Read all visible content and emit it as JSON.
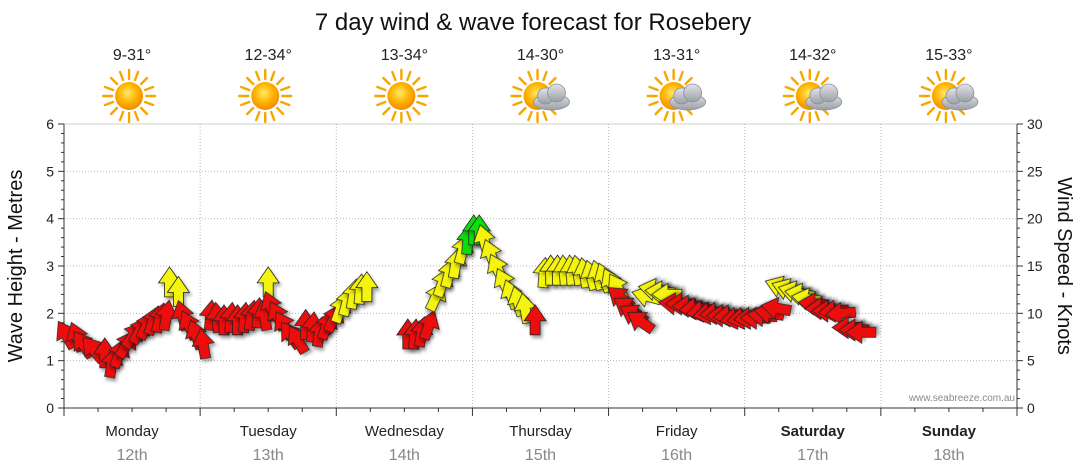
{
  "chart_data": {
    "type": "scatter",
    "title": "7 day wind & wave forecast for Rosebery",
    "ylabel_left": "Wave Height - Metres",
    "ylabel_right": "Wind Speed - Knots",
    "ylim_left": [
      0,
      6
    ],
    "ylim_right": [
      0,
      30
    ],
    "yticks_left": [
      "0",
      "1",
      "2",
      "3",
      "4",
      "5",
      "6"
    ],
    "yticks_right": [
      "0",
      "5",
      "10",
      "15",
      "20",
      "25",
      "30"
    ],
    "grid": true,
    "watermark": "www.seabreeze.com.au",
    "days": [
      {
        "name": "Monday",
        "date": "12th",
        "temp": "9-31°",
        "weather": "sunny",
        "bold": false
      },
      {
        "name": "Tuesday",
        "date": "13th",
        "temp": "12-34°",
        "weather": "sunny",
        "bold": false
      },
      {
        "name": "Wednesday",
        "date": "14th",
        "temp": "13-34°",
        "weather": "sunny",
        "bold": false
      },
      {
        "name": "Thursday",
        "date": "15th",
        "temp": "14-30°",
        "weather": "partly-cloudy",
        "bold": false
      },
      {
        "name": "Friday",
        "date": "16th",
        "temp": "13-31°",
        "weather": "partly-cloudy",
        "bold": false
      },
      {
        "name": "Saturday",
        "date": "17th",
        "temp": "14-32°",
        "weather": "partly-cloudy",
        "bold": true
      },
      {
        "name": "Sunday",
        "date": "18th",
        "temp": "15-33°",
        "weather": "partly-cloudy",
        "bold": true
      }
    ],
    "colors": {
      "red": "#ee1111",
      "yellow": "#f4f40e",
      "green": "#11dd11"
    },
    "arrows": [
      {
        "t": 0.05,
        "h": 1.5,
        "dir": -30,
        "c": "red"
      },
      {
        "t": 0.2,
        "h": 1.45,
        "dir": -20,
        "c": "red"
      },
      {
        "t": 0.3,
        "h": 1.3,
        "dir": -35,
        "c": "red"
      },
      {
        "t": 0.45,
        "h": 1.2,
        "dir": -40,
        "c": "red"
      },
      {
        "t": 0.6,
        "h": 1.1,
        "dir": 0,
        "c": "red"
      },
      {
        "t": 0.7,
        "h": 0.9,
        "dir": 10,
        "c": "red"
      },
      {
        "t": 0.8,
        "h": 1.1,
        "dir": 20,
        "c": "red"
      },
      {
        "t": 0.9,
        "h": 1.3,
        "dir": 30,
        "c": "red"
      },
      {
        "t": 1.0,
        "h": 1.5,
        "dir": 35,
        "c": "red"
      },
      {
        "t": 1.1,
        "h": 1.6,
        "dir": 30,
        "c": "red"
      },
      {
        "t": 1.2,
        "h": 1.7,
        "dir": 25,
        "c": "red"
      },
      {
        "t": 1.3,
        "h": 1.8,
        "dir": 20,
        "c": "red"
      },
      {
        "t": 1.4,
        "h": 1.85,
        "dir": 15,
        "c": "red"
      },
      {
        "t": 1.5,
        "h": 1.9,
        "dir": 10,
        "c": "red"
      },
      {
        "t": 1.55,
        "h": 2.6,
        "dir": 0,
        "c": "yellow"
      },
      {
        "t": 1.68,
        "h": 2.4,
        "dir": 0,
        "c": "yellow"
      },
      {
        "t": 1.75,
        "h": 1.9,
        "dir": -15,
        "c": "red"
      },
      {
        "t": 1.85,
        "h": 1.7,
        "dir": -25,
        "c": "red"
      },
      {
        "t": 1.95,
        "h": 1.5,
        "dir": -20,
        "c": "red"
      },
      {
        "t": 2.05,
        "h": 1.3,
        "dir": -10,
        "c": "red"
      },
      {
        "t": 2.15,
        "h": 1.9,
        "dir": 5,
        "c": "red"
      },
      {
        "t": 2.25,
        "h": 1.85,
        "dir": -5,
        "c": "red"
      },
      {
        "t": 2.35,
        "h": 1.8,
        "dir": 0,
        "c": "red"
      },
      {
        "t": 2.45,
        "h": 1.85,
        "dir": 5,
        "c": "red"
      },
      {
        "t": 2.55,
        "h": 1.8,
        "dir": 0,
        "c": "red"
      },
      {
        "t": 2.65,
        "h": 1.85,
        "dir": 5,
        "c": "red"
      },
      {
        "t": 2.75,
        "h": 1.9,
        "dir": 10,
        "c": "red"
      },
      {
        "t": 2.85,
        "h": 1.95,
        "dir": 5,
        "c": "red"
      },
      {
        "t": 2.95,
        "h": 1.9,
        "dir": -10,
        "c": "red"
      },
      {
        "t": 3.0,
        "h": 2.6,
        "dir": 0,
        "c": "yellow"
      },
      {
        "t": 3.05,
        "h": 2.1,
        "dir": -20,
        "c": "red"
      },
      {
        "t": 3.15,
        "h": 1.9,
        "dir": -25,
        "c": "red"
      },
      {
        "t": 3.25,
        "h": 1.7,
        "dir": -30,
        "c": "red"
      },
      {
        "t": 3.35,
        "h": 1.5,
        "dir": -35,
        "c": "red"
      },
      {
        "t": 3.45,
        "h": 1.4,
        "dir": -30,
        "c": "red"
      },
      {
        "t": 3.55,
        "h": 1.7,
        "dir": 0,
        "c": "red"
      },
      {
        "t": 3.65,
        "h": 1.65,
        "dir": 5,
        "c": "red"
      },
      {
        "t": 3.75,
        "h": 1.55,
        "dir": 10,
        "c": "red"
      },
      {
        "t": 3.85,
        "h": 1.7,
        "dir": 20,
        "c": "red"
      },
      {
        "t": 3.95,
        "h": 1.85,
        "dir": 25,
        "c": "red"
      },
      {
        "t": 4.05,
        "h": 2.05,
        "dir": 20,
        "c": "yellow"
      },
      {
        "t": 4.15,
        "h": 2.2,
        "dir": 15,
        "c": "yellow"
      },
      {
        "t": 4.25,
        "h": 2.35,
        "dir": 10,
        "c": "yellow"
      },
      {
        "t": 4.35,
        "h": 2.45,
        "dir": 5,
        "c": "yellow"
      },
      {
        "t": 4.45,
        "h": 2.5,
        "dir": 0,
        "c": "yellow"
      },
      {
        "t": 5.05,
        "h": 1.5,
        "dir": 0,
        "c": "red"
      },
      {
        "t": 5.15,
        "h": 1.5,
        "dir": 5,
        "c": "red"
      },
      {
        "t": 5.25,
        "h": 1.55,
        "dir": 10,
        "c": "red"
      },
      {
        "t": 5.35,
        "h": 1.7,
        "dir": 20,
        "c": "red"
      },
      {
        "t": 5.45,
        "h": 2.3,
        "dir": 25,
        "c": "yellow"
      },
      {
        "t": 5.55,
        "h": 2.6,
        "dir": 20,
        "c": "yellow"
      },
      {
        "t": 5.65,
        "h": 2.8,
        "dir": 15,
        "c": "yellow"
      },
      {
        "t": 5.75,
        "h": 3.0,
        "dir": 10,
        "c": "yellow"
      },
      {
        "t": 5.85,
        "h": 3.3,
        "dir": 15,
        "c": "yellow"
      },
      {
        "t": 5.93,
        "h": 3.5,
        "dir": 5,
        "c": "green"
      },
      {
        "t": 6.02,
        "h": 3.7,
        "dir": 0,
        "c": "green"
      },
      {
        "t": 6.1,
        "h": 3.7,
        "dir": 0,
        "c": "green"
      },
      {
        "t": 6.18,
        "h": 3.5,
        "dir": -15,
        "c": "yellow"
      },
      {
        "t": 6.28,
        "h": 3.2,
        "dir": -20,
        "c": "yellow"
      },
      {
        "t": 6.38,
        "h": 2.9,
        "dir": -25,
        "c": "yellow"
      },
      {
        "t": 6.48,
        "h": 2.6,
        "dir": -25,
        "c": "yellow"
      },
      {
        "t": 6.58,
        "h": 2.35,
        "dir": -20,
        "c": "yellow"
      },
      {
        "t": 6.68,
        "h": 2.2,
        "dir": -15,
        "c": "yellow"
      },
      {
        "t": 6.78,
        "h": 2.05,
        "dir": -10,
        "c": "yellow"
      },
      {
        "t": 6.92,
        "h": 1.8,
        "dir": 0,
        "c": "red"
      },
      {
        "t": 7.05,
        "h": 2.8,
        "dir": 5,
        "c": "yellow"
      },
      {
        "t": 7.15,
        "h": 2.85,
        "dir": 0,
        "c": "yellow"
      },
      {
        "t": 7.25,
        "h": 2.85,
        "dir": 0,
        "c": "yellow"
      },
      {
        "t": 7.35,
        "h": 2.85,
        "dir": -5,
        "c": "yellow"
      },
      {
        "t": 7.45,
        "h": 2.85,
        "dir": -5,
        "c": "yellow"
      },
      {
        "t": 7.55,
        "h": 2.85,
        "dir": -10,
        "c": "yellow"
      },
      {
        "t": 7.65,
        "h": 2.8,
        "dir": -10,
        "c": "yellow"
      },
      {
        "t": 7.75,
        "h": 2.75,
        "dir": -15,
        "c": "yellow"
      },
      {
        "t": 7.85,
        "h": 2.75,
        "dir": -15,
        "c": "yellow"
      },
      {
        "t": 7.95,
        "h": 2.7,
        "dir": -20,
        "c": "yellow"
      },
      {
        "t": 8.05,
        "h": 2.6,
        "dir": -25,
        "c": "yellow"
      },
      {
        "t": 8.15,
        "h": 2.5,
        "dir": -30,
        "c": "yellow"
      },
      {
        "t": 8.2,
        "h": 2.3,
        "dir": -50,
        "c": "red"
      },
      {
        "t": 8.3,
        "h": 2.1,
        "dir": -55,
        "c": "red"
      },
      {
        "t": 8.4,
        "h": 1.95,
        "dir": -60,
        "c": "red"
      },
      {
        "t": 8.5,
        "h": 1.8,
        "dir": -55,
        "c": "red"
      },
      {
        "t": 8.6,
        "h": 2.35,
        "dir": -75,
        "c": "yellow"
      },
      {
        "t": 8.7,
        "h": 2.5,
        "dir": -80,
        "c": "yellow"
      },
      {
        "t": 8.8,
        "h": 2.45,
        "dir": -85,
        "c": "yellow"
      },
      {
        "t": 8.9,
        "h": 2.4,
        "dir": -90,
        "c": "yellow"
      },
      {
        "t": 9.0,
        "h": 2.2,
        "dir": -85,
        "c": "red"
      },
      {
        "t": 9.1,
        "h": 2.2,
        "dir": -90,
        "c": "red"
      },
      {
        "t": 9.2,
        "h": 2.15,
        "dir": -90,
        "c": "red"
      },
      {
        "t": 9.3,
        "h": 2.1,
        "dir": -95,
        "c": "red"
      },
      {
        "t": 9.4,
        "h": 2.05,
        "dir": -100,
        "c": "red"
      },
      {
        "t": 9.5,
        "h": 2.0,
        "dir": -100,
        "c": "red"
      },
      {
        "t": 9.6,
        "h": 2.0,
        "dir": -95,
        "c": "red"
      },
      {
        "t": 9.7,
        "h": 1.95,
        "dir": -90,
        "c": "red"
      },
      {
        "t": 9.8,
        "h": 1.95,
        "dir": -95,
        "c": "red"
      },
      {
        "t": 9.9,
        "h": 1.9,
        "dir": -100,
        "c": "red"
      },
      {
        "t": 10.0,
        "h": 1.9,
        "dir": -100,
        "c": "red"
      },
      {
        "t": 10.1,
        "h": 1.9,
        "dir": -95,
        "c": "red"
      },
      {
        "t": 10.2,
        "h": 1.9,
        "dir": -90,
        "c": "red"
      },
      {
        "t": 10.3,
        "h": 1.95,
        "dir": -85,
        "c": "red"
      },
      {
        "t": 10.4,
        "h": 2.0,
        "dir": -80,
        "c": "red"
      },
      {
        "t": 10.5,
        "h": 2.1,
        "dir": -80,
        "c": "red"
      },
      {
        "t": 10.55,
        "h": 2.55,
        "dir": -70,
        "c": "yellow"
      },
      {
        "t": 10.65,
        "h": 2.5,
        "dir": -70,
        "c": "yellow"
      },
      {
        "t": 10.75,
        "h": 2.45,
        "dir": -75,
        "c": "yellow"
      },
      {
        "t": 10.85,
        "h": 2.4,
        "dir": -80,
        "c": "yellow"
      },
      {
        "t": 10.95,
        "h": 2.3,
        "dir": -80,
        "c": "yellow"
      },
      {
        "t": 11.05,
        "h": 2.2,
        "dir": -85,
        "c": "red"
      },
      {
        "t": 11.15,
        "h": 2.1,
        "dir": -90,
        "c": "red"
      },
      {
        "t": 11.25,
        "h": 2.05,
        "dir": -90,
        "c": "red"
      },
      {
        "t": 11.35,
        "h": 2.05,
        "dir": -95,
        "c": "red"
      },
      {
        "t": 11.45,
        "h": 2.0,
        "dir": -95,
        "c": "red"
      },
      {
        "t": 11.55,
        "h": 1.7,
        "dir": -90,
        "c": "red"
      },
      {
        "t": 11.65,
        "h": 1.65,
        "dir": -90,
        "c": "red"
      },
      {
        "t": 11.75,
        "h": 1.6,
        "dir": -90,
        "c": "red"
      }
    ]
  }
}
